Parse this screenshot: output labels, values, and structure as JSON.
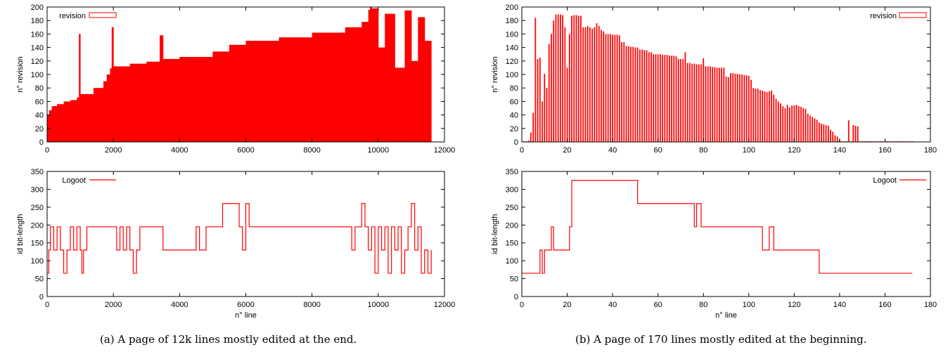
{
  "panels": [
    {
      "caption": "(a) A page of 12k lines mostly edited at the end.",
      "charts": [
        {
          "type": "bar",
          "legend": "revision",
          "legend_position": "top-left",
          "ylabel": "n° revision",
          "xlabel": "",
          "xlim": [
            0,
            12000
          ],
          "ylim": [
            0,
            200
          ],
          "xticks": [
            0,
            2000,
            4000,
            6000,
            8000,
            10000,
            12000
          ],
          "yticks": [
            0,
            20,
            40,
            60,
            80,
            100,
            120,
            140,
            160,
            180,
            200
          ],
          "color": "#ff0000",
          "x": [
            0,
            60,
            140,
            300,
            500,
            700,
            900,
            960,
            1000,
            1400,
            1700,
            1800,
            1900,
            1950,
            2000,
            2500,
            3000,
            3400,
            3500,
            4000,
            5000,
            5500,
            6000,
            7000,
            8000,
            9000,
            9500,
            9700,
            9750,
            9800,
            10000,
            10200,
            10500,
            10800,
            11000,
            11200,
            11400,
            11600
          ],
          "values": [
            40,
            47,
            53,
            56,
            60,
            62,
            66,
            160,
            71,
            80,
            90,
            100,
            109,
            170,
            112,
            116,
            119,
            158,
            123,
            126,
            134,
            144,
            150,
            155,
            162,
            170,
            178,
            196,
            200,
            198,
            140,
            190,
            110,
            195,
            120,
            185,
            150,
            180
          ]
        },
        {
          "type": "line",
          "legend": "Logoot",
          "legend_position": "top-left",
          "ylabel": "id bit-length",
          "xlabel": "n° line",
          "xlim": [
            0,
            12000
          ],
          "ylim": [
            0,
            350
          ],
          "xticks": [
            0,
            2000,
            4000,
            6000,
            8000,
            10000,
            12000
          ],
          "yticks": [
            0,
            50,
            100,
            150,
            200,
            250,
            300,
            350
          ],
          "color": "#ff0000",
          "x": [
            0,
            50,
            100,
            200,
            300,
            400,
            500,
            600,
            700,
            800,
            900,
            1000,
            1050,
            1100,
            1200,
            1300,
            1400,
            1500,
            1600,
            1800,
            2000,
            2100,
            2200,
            2300,
            2400,
            2500,
            2600,
            2700,
            2800,
            3000,
            3100,
            3400,
            3500,
            3600,
            4000,
            4500,
            4600,
            4800,
            5000,
            5300,
            5400,
            5600,
            5800,
            5900,
            6000,
            6100,
            6500,
            7000,
            7500,
            8000,
            8500,
            9000,
            9200,
            9300,
            9500,
            9600,
            9700,
            9800,
            9900,
            10000,
            10100,
            10200,
            10300,
            10400,
            10500,
            10600,
            10700,
            10800,
            10900,
            11000,
            11100,
            11200,
            11300,
            11400,
            11500,
            11600
          ],
          "values": [
            65,
            130,
            195,
            130,
            195,
            130,
            65,
            130,
            195,
            130,
            195,
            130,
            65,
            130,
            195,
            195,
            195,
            195,
            195,
            195,
            195,
            130,
            195,
            130,
            195,
            130,
            65,
            130,
            195,
            195,
            195,
            195,
            130,
            130,
            130,
            195,
            130,
            195,
            195,
            260,
            260,
            260,
            195,
            130,
            260,
            195,
            195,
            195,
            195,
            195,
            195,
            195,
            130,
            195,
            260,
            195,
            130,
            195,
            65,
            195,
            130,
            195,
            65,
            195,
            130,
            195,
            65,
            130,
            195,
            260,
            130,
            195,
            65,
            130,
            65,
            130
          ]
        }
      ]
    },
    {
      "caption": "(b) A page of 170 lines mostly edited at the beginning.",
      "charts": [
        {
          "type": "bar",
          "legend": "revision",
          "legend_position": "top-right",
          "ylabel": "n° revision",
          "xlabel": "",
          "xlim": [
            0,
            180
          ],
          "ylim": [
            0,
            200
          ],
          "xticks": [
            0,
            20,
            40,
            60,
            80,
            100,
            120,
            140,
            160,
            180
          ],
          "yticks": [
            0,
            20,
            40,
            60,
            80,
            100,
            120,
            140,
            160,
            180,
            200
          ],
          "color": "#ff0000",
          "x": [
            1,
            2,
            3,
            4,
            5,
            6,
            7,
            8,
            9,
            10,
            11,
            12,
            13,
            14,
            15,
            16,
            17,
            18,
            19,
            20,
            21,
            22,
            23,
            24,
            25,
            26,
            27,
            28,
            29,
            30,
            31,
            32,
            33,
            34,
            35,
            36,
            37,
            38,
            39,
            40,
            41,
            42,
            43,
            44,
            45,
            46,
            47,
            48,
            49,
            50,
            51,
            52,
            53,
            54,
            55,
            56,
            57,
            58,
            59,
            60,
            61,
            62,
            63,
            64,
            65,
            66,
            67,
            68,
            69,
            70,
            71,
            72,
            73,
            74,
            75,
            76,
            77,
            78,
            79,
            80,
            81,
            82,
            83,
            84,
            85,
            86,
            87,
            88,
            89,
            90,
            91,
            92,
            93,
            94,
            95,
            96,
            97,
            98,
            99,
            100,
            101,
            102,
            103,
            104,
            105,
            106,
            107,
            108,
            109,
            110,
            111,
            112,
            113,
            114,
            115,
            116,
            117,
            118,
            119,
            120,
            121,
            122,
            123,
            124,
            125,
            126,
            127,
            128,
            129,
            130,
            131,
            132,
            133,
            134,
            135,
            136,
            137,
            138,
            139,
            140,
            141,
            142,
            143,
            144,
            145,
            146,
            147,
            148,
            149,
            150,
            151,
            152,
            153,
            154,
            155,
            156,
            157,
            158,
            159,
            160,
            161,
            162,
            163,
            164,
            165,
            166,
            167,
            168,
            169,
            170,
            171,
            172
          ],
          "values": [
            1,
            1,
            2,
            14,
            43,
            184,
            123,
            125,
            60,
            101,
            80,
            145,
            160,
            180,
            189,
            189,
            189,
            188,
            170,
            110,
            160,
            187,
            188,
            188,
            187,
            187,
            170,
            170,
            172,
            170,
            168,
            170,
            176,
            172,
            166,
            164,
            160,
            160,
            160,
            159,
            159,
            159,
            158,
            148,
            148,
            142,
            142,
            141,
            141,
            140,
            140,
            137,
            137,
            136,
            136,
            133,
            133,
            130,
            130,
            130,
            130,
            129,
            129,
            129,
            128,
            128,
            128,
            127,
            123,
            123,
            123,
            133,
            117,
            117,
            116,
            116,
            115,
            115,
            115,
            124,
            112,
            112,
            112,
            111,
            111,
            110,
            110,
            110,
            110,
            97,
            96,
            102,
            102,
            101,
            101,
            100,
            100,
            99,
            99,
            98,
            92,
            80,
            79,
            79,
            77,
            76,
            75,
            74,
            75,
            76,
            70,
            64,
            60,
            57,
            53,
            50,
            55,
            51,
            54,
            54,
            55,
            53,
            52,
            50,
            49,
            42,
            39,
            37,
            35,
            33,
            29,
            27,
            26,
            25,
            24,
            18,
            15,
            10,
            8,
            3,
            1,
            1,
            1,
            32,
            1,
            25,
            24,
            23,
            1,
            1,
            1,
            1,
            1,
            1,
            1,
            1,
            1,
            1,
            1,
            1,
            1,
            1,
            1,
            1,
            1,
            1,
            1,
            1,
            1,
            1,
            1,
            1
          ]
        },
        {
          "type": "line",
          "legend": "Logoot",
          "legend_position": "top-right",
          "ylabel": "id bit-length",
          "xlabel": "n° line",
          "xlim": [
            0,
            180
          ],
          "ylim": [
            0,
            350
          ],
          "xticks": [
            0,
            20,
            40,
            60,
            80,
            100,
            120,
            140,
            160,
            180
          ],
          "yticks": [
            0,
            50,
            100,
            150,
            200,
            250,
            300,
            350
          ],
          "color": "#ff0000",
          "x": [
            0,
            7,
            8,
            9,
            10,
            12,
            13,
            14,
            15,
            20,
            21,
            22,
            50,
            51,
            75,
            76,
            77,
            78,
            79,
            105,
            106,
            109,
            110,
            111,
            130,
            131,
            172
          ],
          "values": [
            65,
            65,
            130,
            65,
            130,
            130,
            195,
            130,
            130,
            130,
            195,
            325,
            325,
            260,
            260,
            195,
            260,
            260,
            195,
            195,
            130,
            195,
            195,
            130,
            130,
            65,
            65
          ]
        }
      ]
    }
  ]
}
